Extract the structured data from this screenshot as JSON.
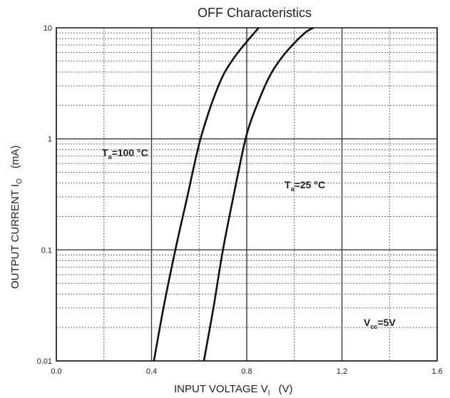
{
  "chart_data": {
    "type": "line",
    "title": "OFF Characteristics",
    "xlabel": {
      "main": "INPUT VOLTAGE   V",
      "sub": "I",
      "unit": "(V)"
    },
    "ylabel": {
      "main": "OUTPUT CURRENT   I",
      "sub": "O",
      "unit": "(mA)"
    },
    "xlim": [
      0.0,
      1.6
    ],
    "ylim": [
      0.01,
      10
    ],
    "yscale": "log",
    "grid": true,
    "x_ticks": [
      "0.0",
      "0.4",
      "0.8",
      "1.2",
      "1.6"
    ],
    "y_ticks": [
      "0.01",
      "0.1",
      "1",
      "10"
    ],
    "series": [
      {
        "name": "Ta=100 °C",
        "x": [
          0.41,
          0.45,
          0.5,
          0.55,
          0.6,
          0.65,
          0.7,
          0.75,
          0.8,
          0.85
        ],
        "y": [
          0.01,
          0.03,
          0.1,
          0.3,
          0.9,
          2.0,
          3.7,
          5.5,
          7.5,
          10
        ]
      },
      {
        "name": "Ta=25 °C",
        "x": [
          0.62,
          0.66,
          0.7,
          0.75,
          0.8,
          0.85,
          0.9,
          0.95,
          1.0,
          1.05,
          1.08
        ],
        "y": [
          0.01,
          0.03,
          0.1,
          0.35,
          1.1,
          2.2,
          3.8,
          5.5,
          7.3,
          9.2,
          10
        ]
      }
    ],
    "annotations": [
      {
        "main": "T",
        "sub": "a",
        "rest": "=100 °C"
      },
      {
        "main": "T",
        "sub": "a",
        "rest": "=25 °C"
      },
      {
        "main": "V",
        "sub": "cc",
        "rest": "=5V"
      }
    ]
  }
}
